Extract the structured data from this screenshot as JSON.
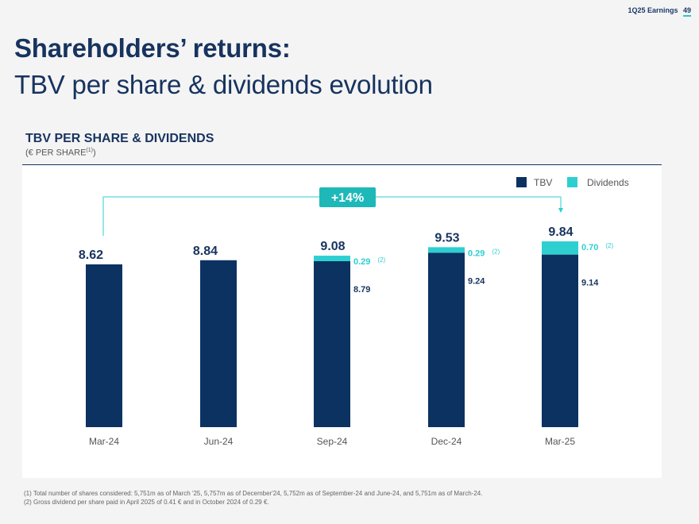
{
  "header": {
    "label": "1Q25 Earnings",
    "page": "49"
  },
  "title": {
    "line1": "Shareholders’ returns:",
    "line2": "TBV per share & dividends evolution"
  },
  "section": {
    "title": "TBV PER SHARE & DIVIDENDS",
    "subtitle": "(€ PER SHARE",
    "subtitle_note": "(1)",
    "subtitle_close": ")"
  },
  "colors": {
    "tbv": "#0b3261",
    "dividends": "#2ecfd1",
    "text": "#17335f"
  },
  "growth_badge": "+14%",
  "chart_data": {
    "type": "bar",
    "stacked": true,
    "categories": [
      "Mar-24",
      "Jun-24",
      "Sep-24",
      "Dec-24",
      "Mar-25"
    ],
    "series": [
      {
        "name": "TBV",
        "values": [
          8.62,
          8.84,
          8.79,
          9.24,
          9.14
        ]
      },
      {
        "name": "Dividends",
        "values": [
          0,
          0,
          0.29,
          0.29,
          0.7
        ]
      }
    ],
    "totals": [
      "8.62",
      "8.84",
      "9.08",
      "9.53",
      "9.84"
    ],
    "tbv_labels": [
      "",
      "",
      "8.79",
      "9.24",
      "9.14"
    ],
    "dividend_labels": [
      "",
      "",
      "0.29",
      "0.29",
      "0.70"
    ],
    "dividend_note": "(2)",
    "legend": [
      "TBV",
      "Dividends"
    ],
    "legend_position": "top-right",
    "grid": false
  },
  "footnotes": [
    "(1) Total number of shares considered: 5,751m as of March '25, 5,757m as of December'24, 5,752m as of September-24 and June-24, and 5,751m as of March-24.",
    "(2) Gross dividend per share paid in April 2025 of 0.41 € and in October 2024 of 0.29 €."
  ]
}
